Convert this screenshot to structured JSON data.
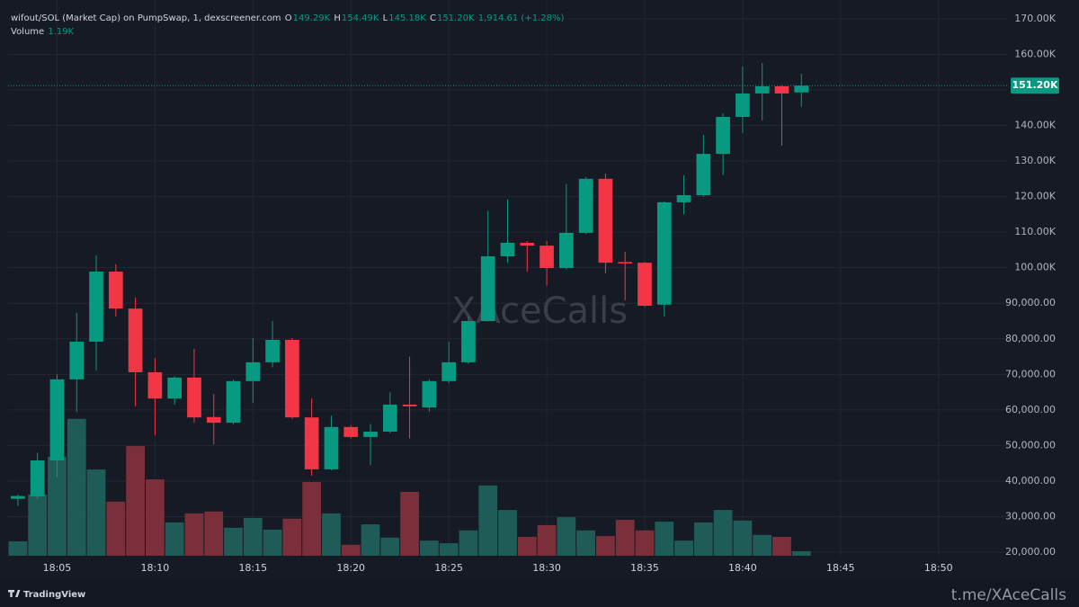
{
  "chart_data": {
    "type": "candlestick",
    "legend": {
      "symbol": "wifout/SOL (Market Cap) on PumpSwap, 1, dexscreener.com",
      "o_label": "O",
      "open": "149.29K",
      "h_label": "H",
      "high": "154.49K",
      "l_label": "L",
      "low": "145.18K",
      "c_label": "C",
      "close": "151.20K",
      "change": "1,914.61 (+1.28%)",
      "volume_label": "Volume",
      "volume": "1.19K"
    },
    "x": [
      "18:03",
      "18:04",
      "18:05",
      "18:06",
      "18:07",
      "18:08",
      "18:09",
      "18:10",
      "18:11",
      "18:12",
      "18:13",
      "18:14",
      "18:15",
      "18:16",
      "18:17",
      "18:18",
      "18:19",
      "18:20",
      "18:21",
      "18:22",
      "18:23",
      "18:24",
      "18:25",
      "18:26",
      "18:27",
      "18:28",
      "18:29",
      "18:30",
      "18:31",
      "18:32",
      "18:33",
      "18:34",
      "18:35",
      "18:36",
      "18:37",
      "18:38",
      "18:39",
      "18:40",
      "18:41",
      "18:42",
      "18:43"
    ],
    "open": [
      35000,
      35700,
      45800,
      68600,
      79200,
      98900,
      88500,
      70600,
      63200,
      69100,
      58000,
      56400,
      68100,
      73400,
      79700,
      57900,
      43300,
      55200,
      52400,
      53900,
      61500,
      60700,
      68100,
      73400,
      85000,
      103200,
      107000,
      106200,
      99900,
      109800,
      125000,
      101600,
      101400,
      89600,
      118400,
      120400,
      132000,
      142400,
      149000,
      151000,
      149290
    ],
    "high": [
      36200,
      48000,
      70000,
      87300,
      103500,
      101000,
      91600,
      74600,
      69500,
      77200,
      64500,
      68500,
      80200,
      85000,
      80200,
      63200,
      58400,
      55700,
      56000,
      65000,
      75000,
      68600,
      79200,
      86300,
      116000,
      119200,
      107500,
      107500,
      123500,
      125500,
      126500,
      104500,
      101600,
      118600,
      126000,
      137400,
      143400,
      156600,
      157600,
      151200,
      154490
    ],
    "low": [
      33000,
      35000,
      41000,
      59500,
      71000,
      86300,
      61000,
      52900,
      61500,
      56400,
      50300,
      56000,
      62000,
      72000,
      57500,
      41500,
      43000,
      52000,
      44500,
      53500,
      52000,
      59500,
      67500,
      73000,
      85000,
      101400,
      98900,
      94900,
      99500,
      109500,
      98400,
      90800,
      89000,
      86300,
      115000,
      120000,
      126000,
      137900,
      141400,
      134300,
      145180
    ],
    "close": [
      35800,
      45800,
      68600,
      79200,
      98900,
      88500,
      70600,
      63200,
      69100,
      57900,
      56400,
      68100,
      73400,
      79700,
      57900,
      43300,
      55200,
      52400,
      53900,
      61500,
      61000,
      68100,
      73400,
      85000,
      103200,
      107000,
      106200,
      99900,
      109800,
      125000,
      101400,
      101200,
      89300,
      118400,
      120400,
      132000,
      142400,
      149000,
      151000,
      149000,
      151200
    ],
    "volume": [
      3800,
      16200,
      26200,
      36200,
      22800,
      14300,
      29000,
      20200,
      8800,
      11200,
      11700,
      7400,
      10000,
      6900,
      9800,
      19500,
      11200,
      2900,
      8300,
      4800,
      16900,
      4000,
      3300,
      6700,
      18600,
      12100,
      5000,
      8100,
      10200,
      6700,
      5200,
      9500,
      6700,
      9000,
      4000,
      8800,
      12100,
      9300,
      5500,
      5000,
      1190
    ],
    "up_color": "#089981",
    "down_color": "#f23645",
    "volume_up_color": "#1f5c57",
    "volume_down_color": "#7a2f3a",
    "xlim": [
      "18:03",
      "18:53"
    ],
    "xticks": [
      "18:05",
      "18:10",
      "18:15",
      "18:20",
      "18:25",
      "18:30",
      "18:35",
      "18:40",
      "18:45",
      "18:50"
    ],
    "ylim": [
      19000,
      173000
    ],
    "yticks": [
      {
        "value": 20000,
        "label": "20,000.00"
      },
      {
        "value": 30000,
        "label": "30,000.00"
      },
      {
        "value": 40000,
        "label": "40,000.00"
      },
      {
        "value": 50000,
        "label": "50,000.00"
      },
      {
        "value": 60000,
        "label": "60,000.00"
      },
      {
        "value": 70000,
        "label": "70,000.00"
      },
      {
        "value": 80000,
        "label": "80,000.00"
      },
      {
        "value": 90000,
        "label": "90,000.00"
      },
      {
        "value": 100000,
        "label": "100.00K"
      },
      {
        "value": 110000,
        "label": "110.00K"
      },
      {
        "value": 120000,
        "label": "120.00K"
      },
      {
        "value": 130000,
        "label": "130.00K"
      },
      {
        "value": 140000,
        "label": "140.00K"
      },
      {
        "value": 150000,
        "label": "150.00K"
      },
      {
        "value": 160000,
        "label": "160.00K"
      },
      {
        "value": 170000,
        "label": "170.00K"
      }
    ],
    "grid": true,
    "last_price_label": "151.20K",
    "watermark": "XAceCalls",
    "source": "t.me/XAceCalls",
    "brand": "TradingView"
  }
}
